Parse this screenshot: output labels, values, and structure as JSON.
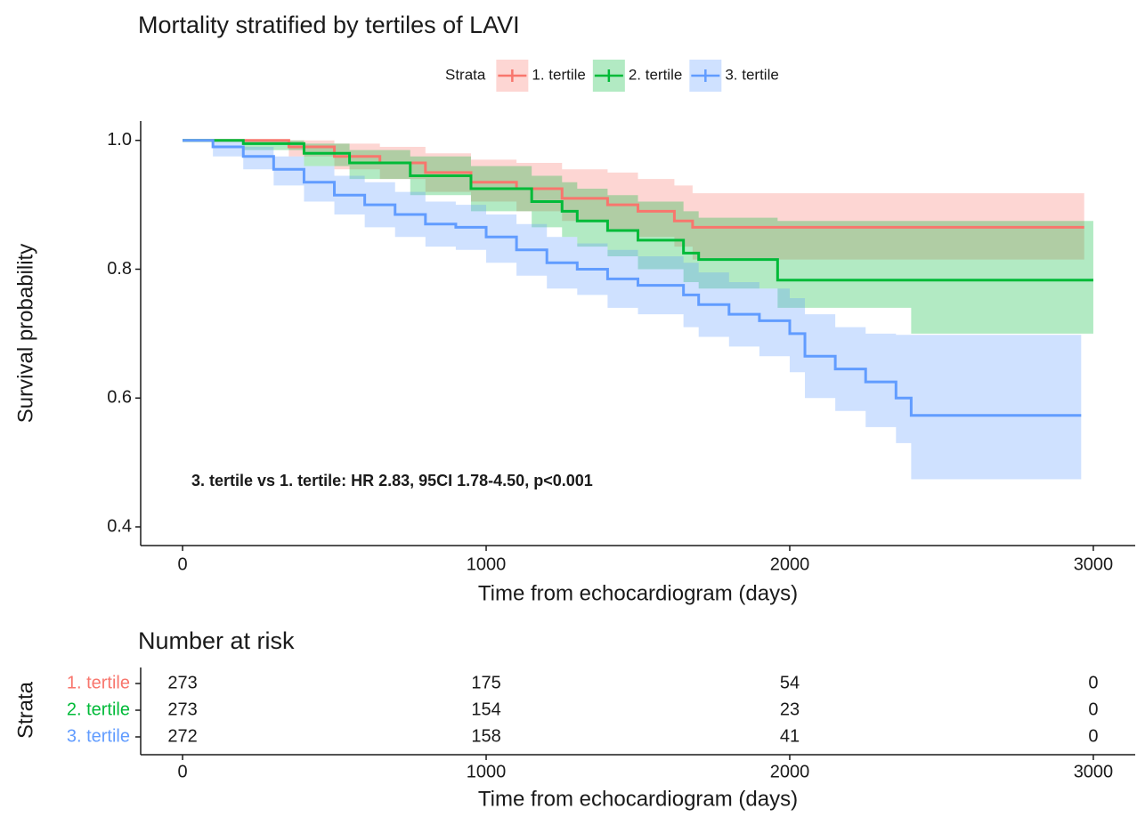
{
  "chart_data": [
    {
      "type": "km",
      "title": "Mortality stratified by tertiles of LAVI",
      "legend": {
        "title": "Strata",
        "position": "top"
      },
      "xlabel": "Time from echocardiogram (days)",
      "ylabel": "Survival probability",
      "annotation": "3. tertile vs 1. tertile: HR 2.83, 95CI 1.78-4.50, p<0.001",
      "xlim": [
        -138,
        3138
      ],
      "xticks": [
        0,
        1000,
        2000,
        3000
      ],
      "ylim": [
        0.371,
        1.03
      ],
      "yticks": [
        {
          "value": 1,
          "label": "1.0"
        },
        0.8,
        0.6,
        0.4
      ],
      "series": [
        {
          "name": "1. tertile",
          "color": "#F8766D",
          "x": [
            0,
            200,
            350,
            500,
            650,
            800,
            950,
            1100,
            1250,
            1400,
            1500,
            1620,
            1680,
            2970
          ],
          "values": [
            1,
            1,
            0.99,
            0.975,
            0.965,
            0.95,
            0.935,
            0.925,
            0.91,
            0.9,
            0.89,
            0.875,
            0.865,
            0.865
          ],
          "lower": [
            1,
            0.995,
            0.975,
            0.955,
            0.94,
            0.92,
            0.905,
            0.89,
            0.875,
            0.86,
            0.85,
            0.835,
            0.815,
            0.815
          ],
          "upper": [
            1,
            1,
            1,
            0.995,
            0.99,
            0.98,
            0.97,
            0.965,
            0.955,
            0.95,
            0.94,
            0.93,
            0.918,
            0.918
          ]
        },
        {
          "name": "2. tertile",
          "color": "#00BA38",
          "x": [
            0,
            200,
            400,
            550,
            750,
            950,
            1150,
            1250,
            1300,
            1400,
            1500,
            1650,
            1700,
            1960,
            2400,
            3000
          ],
          "values": [
            1,
            0.995,
            0.98,
            0.965,
            0.945,
            0.925,
            0.905,
            0.89,
            0.875,
            0.86,
            0.845,
            0.825,
            0.815,
            0.783,
            0.783,
            0.783
          ],
          "lower": [
            1,
            0.985,
            0.96,
            0.94,
            0.915,
            0.89,
            0.865,
            0.85,
            0.835,
            0.82,
            0.8,
            0.78,
            0.77,
            0.74,
            0.7,
            0.7
          ],
          "upper": [
            1,
            1,
            0.995,
            0.985,
            0.975,
            0.96,
            0.945,
            0.935,
            0.925,
            0.915,
            0.905,
            0.89,
            0.88,
            0.875,
            0.875,
            0.875
          ]
        },
        {
          "name": "3. tertile",
          "color": "#619CFF",
          "x": [
            0,
            100,
            200,
            300,
            400,
            500,
            600,
            700,
            800,
            900,
            1000,
            1100,
            1200,
            1300,
            1400,
            1500,
            1650,
            1700,
            1800,
            1900,
            2000,
            2050,
            2150,
            2250,
            2350,
            2400,
            2960
          ],
          "values": [
            1,
            0.99,
            0.975,
            0.955,
            0.935,
            0.915,
            0.9,
            0.885,
            0.87,
            0.865,
            0.85,
            0.83,
            0.81,
            0.8,
            0.785,
            0.775,
            0.76,
            0.745,
            0.73,
            0.72,
            0.7,
            0.665,
            0.645,
            0.625,
            0.6,
            0.573,
            0.573
          ],
          "lower": [
            1,
            0.975,
            0.955,
            0.93,
            0.905,
            0.885,
            0.865,
            0.85,
            0.835,
            0.83,
            0.81,
            0.79,
            0.77,
            0.76,
            0.74,
            0.73,
            0.71,
            0.695,
            0.68,
            0.665,
            0.64,
            0.6,
            0.58,
            0.555,
            0.53,
            0.474,
            0.474
          ],
          "upper": [
            1,
            1,
            0.99,
            0.975,
            0.96,
            0.945,
            0.935,
            0.92,
            0.905,
            0.9,
            0.885,
            0.87,
            0.85,
            0.84,
            0.83,
            0.82,
            0.81,
            0.795,
            0.78,
            0.77,
            0.755,
            0.73,
            0.71,
            0.7,
            0.698,
            0.698,
            0.698
          ]
        }
      ]
    },
    {
      "type": "risk-table",
      "title": "Number at risk",
      "ylabel": "Strata",
      "xlabel": "Time from echocardiogram (days)",
      "xlim": [
        -138,
        3138
      ],
      "xticks": [
        0,
        1000,
        2000,
        3000
      ],
      "x": [
        0,
        1000,
        2000,
        3000
      ],
      "series": [
        {
          "name": "1. tertile",
          "color": "#F8766D",
          "values": [
            273,
            175,
            54,
            0
          ]
        },
        {
          "name": "2. tertile",
          "color": "#00BA38",
          "values": [
            273,
            154,
            23,
            0
          ]
        },
        {
          "name": "3. tertile",
          "color": "#619CFF",
          "values": [
            272,
            158,
            41,
            0
          ]
        }
      ]
    }
  ]
}
